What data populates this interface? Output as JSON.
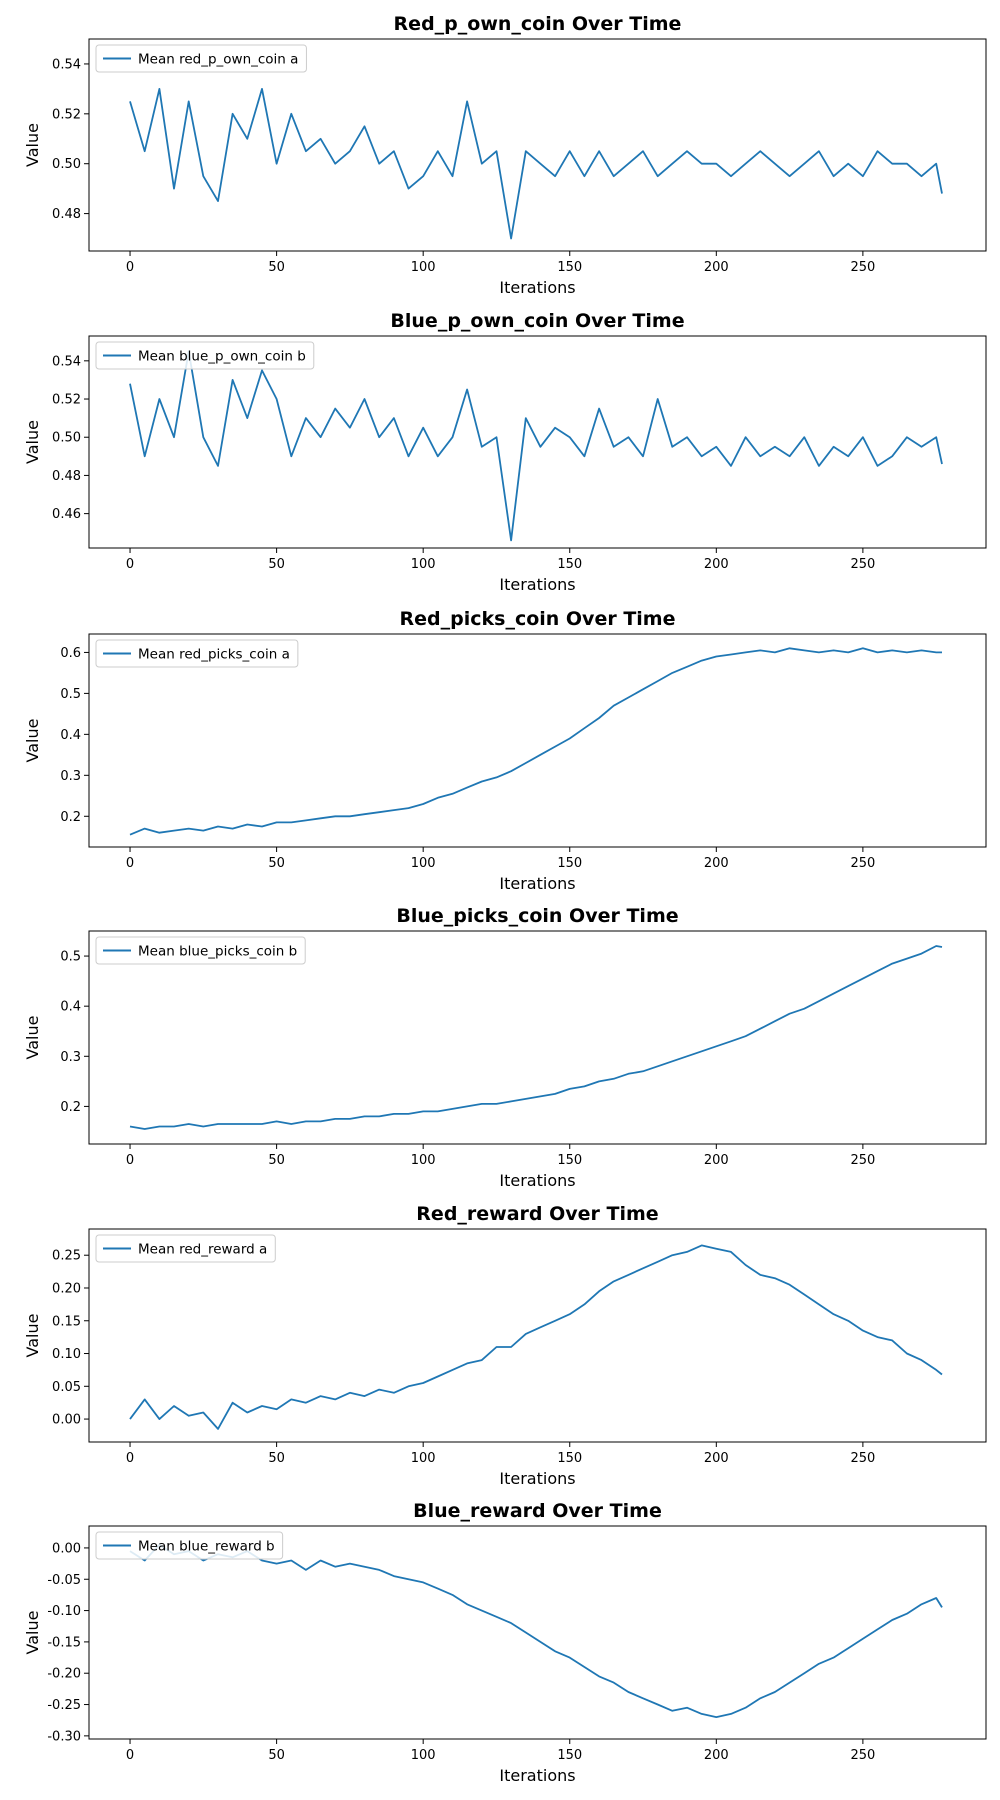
{
  "chart_data": [
    {
      "type": "line",
      "title": "Red_p_own_coin Over Time",
      "xlabel": "Iterations",
      "ylabel": "Value",
      "xlim": [
        -14,
        292
      ],
      "ylim": [
        0.465,
        0.55
      ],
      "xticks": [
        0,
        50,
        100,
        150,
        200,
        250
      ],
      "yticks": [
        0.48,
        0.5,
        0.52,
        0.54
      ],
      "ytick_decimals": 2,
      "legend": "upper-left",
      "series": [
        {
          "name": "Mean red_p_own_coin a",
          "color": "#1f77b4",
          "x": [
            0,
            5,
            10,
            15,
            20,
            25,
            30,
            35,
            40,
            45,
            50,
            55,
            60,
            65,
            70,
            75,
            80,
            85,
            90,
            95,
            100,
            105,
            110,
            115,
            120,
            125,
            130,
            135,
            140,
            145,
            150,
            155,
            160,
            165,
            170,
            175,
            180,
            185,
            190,
            195,
            200,
            205,
            210,
            215,
            220,
            225,
            230,
            235,
            240,
            245,
            250,
            255,
            260,
            265,
            270,
            275,
            277
          ],
          "y": [
            0.525,
            0.505,
            0.53,
            0.49,
            0.525,
            0.495,
            0.485,
            0.52,
            0.51,
            0.53,
            0.5,
            0.52,
            0.505,
            0.51,
            0.5,
            0.505,
            0.515,
            0.5,
            0.505,
            0.49,
            0.495,
            0.505,
            0.495,
            0.525,
            0.5,
            0.505,
            0.47,
            0.505,
            0.5,
            0.495,
            0.505,
            0.495,
            0.505,
            0.495,
            0.5,
            0.505,
            0.495,
            0.5,
            0.505,
            0.5,
            0.5,
            0.495,
            0.5,
            0.505,
            0.5,
            0.495,
            0.5,
            0.505,
            0.495,
            0.5,
            0.495,
            0.505,
            0.5,
            0.5,
            0.495,
            0.5,
            0.488
          ]
        }
      ]
    },
    {
      "type": "line",
      "title": "Blue_p_own_coin Over Time",
      "xlabel": "Iterations",
      "ylabel": "Value",
      "xlim": [
        -14,
        292
      ],
      "ylim": [
        0.442,
        0.553
      ],
      "xticks": [
        0,
        50,
        100,
        150,
        200,
        250
      ],
      "yticks": [
        0.46,
        0.48,
        0.5,
        0.52,
        0.54
      ],
      "ytick_decimals": 2,
      "legend": "upper-left",
      "series": [
        {
          "name": "Mean blue_p_own_coin b",
          "color": "#1f77b4",
          "x": [
            0,
            5,
            10,
            15,
            20,
            25,
            30,
            35,
            40,
            45,
            50,
            55,
            60,
            65,
            70,
            75,
            80,
            85,
            90,
            95,
            100,
            105,
            110,
            115,
            120,
            125,
            130,
            135,
            140,
            145,
            150,
            155,
            160,
            165,
            170,
            175,
            180,
            185,
            190,
            195,
            200,
            205,
            210,
            215,
            220,
            225,
            230,
            235,
            240,
            245,
            250,
            255,
            260,
            265,
            270,
            275,
            277
          ],
          "y": [
            0.528,
            0.49,
            0.52,
            0.5,
            0.545,
            0.5,
            0.485,
            0.53,
            0.51,
            0.535,
            0.52,
            0.49,
            0.51,
            0.5,
            0.515,
            0.505,
            0.52,
            0.5,
            0.51,
            0.49,
            0.505,
            0.49,
            0.5,
            0.525,
            0.495,
            0.5,
            0.446,
            0.51,
            0.495,
            0.505,
            0.5,
            0.49,
            0.515,
            0.495,
            0.5,
            0.49,
            0.52,
            0.495,
            0.5,
            0.49,
            0.495,
            0.485,
            0.5,
            0.49,
            0.495,
            0.49,
            0.5,
            0.485,
            0.495,
            0.49,
            0.5,
            0.485,
            0.49,
            0.5,
            0.495,
            0.5,
            0.486
          ]
        }
      ]
    },
    {
      "type": "line",
      "title": "Red_picks_coin Over Time",
      "xlabel": "Iterations",
      "ylabel": "Value",
      "xlim": [
        -14,
        292
      ],
      "ylim": [
        0.125,
        0.645
      ],
      "xticks": [
        0,
        50,
        100,
        150,
        200,
        250
      ],
      "yticks": [
        0.2,
        0.3,
        0.4,
        0.5,
        0.6
      ],
      "ytick_decimals": 1,
      "legend": "upper-left",
      "series": [
        {
          "name": "Mean red_picks_coin a",
          "color": "#1f77b4",
          "x": [
            0,
            5,
            10,
            15,
            20,
            25,
            30,
            35,
            40,
            45,
            50,
            55,
            60,
            65,
            70,
            75,
            80,
            85,
            90,
            95,
            100,
            105,
            110,
            115,
            120,
            125,
            130,
            135,
            140,
            145,
            150,
            155,
            160,
            165,
            170,
            175,
            180,
            185,
            190,
            195,
            200,
            205,
            210,
            215,
            220,
            225,
            230,
            235,
            240,
            245,
            250,
            255,
            260,
            265,
            270,
            275,
            277
          ],
          "y": [
            0.155,
            0.17,
            0.16,
            0.165,
            0.17,
            0.165,
            0.175,
            0.17,
            0.18,
            0.175,
            0.185,
            0.185,
            0.19,
            0.195,
            0.2,
            0.2,
            0.205,
            0.21,
            0.215,
            0.22,
            0.23,
            0.245,
            0.255,
            0.27,
            0.285,
            0.295,
            0.31,
            0.33,
            0.35,
            0.37,
            0.39,
            0.415,
            0.44,
            0.47,
            0.49,
            0.51,
            0.53,
            0.55,
            0.565,
            0.58,
            0.59,
            0.595,
            0.6,
            0.605,
            0.6,
            0.61,
            0.605,
            0.6,
            0.605,
            0.6,
            0.61,
            0.6,
            0.605,
            0.6,
            0.605,
            0.6,
            0.6
          ]
        }
      ]
    },
    {
      "type": "line",
      "title": "Blue_picks_coin Over Time",
      "xlabel": "Iterations",
      "ylabel": "Value",
      "xlim": [
        -14,
        292
      ],
      "ylim": [
        0.125,
        0.55
      ],
      "xticks": [
        0,
        50,
        100,
        150,
        200,
        250
      ],
      "yticks": [
        0.2,
        0.3,
        0.4,
        0.5
      ],
      "ytick_decimals": 1,
      "legend": "upper-left",
      "series": [
        {
          "name": "Mean blue_picks_coin b",
          "color": "#1f77b4",
          "x": [
            0,
            5,
            10,
            15,
            20,
            25,
            30,
            35,
            40,
            45,
            50,
            55,
            60,
            65,
            70,
            75,
            80,
            85,
            90,
            95,
            100,
            105,
            110,
            115,
            120,
            125,
            130,
            135,
            140,
            145,
            150,
            155,
            160,
            165,
            170,
            175,
            180,
            185,
            190,
            195,
            200,
            205,
            210,
            215,
            220,
            225,
            230,
            235,
            240,
            245,
            250,
            255,
            260,
            265,
            270,
            275,
            277
          ],
          "y": [
            0.16,
            0.155,
            0.16,
            0.16,
            0.165,
            0.16,
            0.165,
            0.165,
            0.165,
            0.165,
            0.17,
            0.165,
            0.17,
            0.17,
            0.175,
            0.175,
            0.18,
            0.18,
            0.185,
            0.185,
            0.19,
            0.19,
            0.195,
            0.2,
            0.205,
            0.205,
            0.21,
            0.215,
            0.22,
            0.225,
            0.235,
            0.24,
            0.25,
            0.255,
            0.265,
            0.27,
            0.28,
            0.29,
            0.3,
            0.31,
            0.32,
            0.33,
            0.34,
            0.355,
            0.37,
            0.385,
            0.395,
            0.41,
            0.425,
            0.44,
            0.455,
            0.47,
            0.485,
            0.495,
            0.505,
            0.52,
            0.518
          ]
        }
      ]
    },
    {
      "type": "line",
      "title": "Red_reward Over Time",
      "xlabel": "Iterations",
      "ylabel": "Value",
      "xlim": [
        -14,
        292
      ],
      "ylim": [
        -0.035,
        0.29
      ],
      "xticks": [
        0,
        50,
        100,
        150,
        200,
        250
      ],
      "yticks": [
        0.0,
        0.05,
        0.1,
        0.15,
        0.2,
        0.25
      ],
      "ytick_decimals": 2,
      "legend": "upper-left",
      "series": [
        {
          "name": "Mean red_reward a",
          "color": "#1f77b4",
          "x": [
            0,
            5,
            10,
            15,
            20,
            25,
            30,
            35,
            40,
            45,
            50,
            55,
            60,
            65,
            70,
            75,
            80,
            85,
            90,
            95,
            100,
            105,
            110,
            115,
            120,
            125,
            130,
            135,
            140,
            145,
            150,
            155,
            160,
            165,
            170,
            175,
            180,
            185,
            190,
            195,
            200,
            205,
            210,
            215,
            220,
            225,
            230,
            235,
            240,
            245,
            250,
            255,
            260,
            265,
            270,
            275,
            277
          ],
          "y": [
            0.0,
            0.03,
            0.0,
            0.02,
            0.005,
            0.01,
            -0.015,
            0.025,
            0.01,
            0.02,
            0.015,
            0.03,
            0.025,
            0.035,
            0.03,
            0.04,
            0.035,
            0.045,
            0.04,
            0.05,
            0.055,
            0.065,
            0.075,
            0.085,
            0.09,
            0.11,
            0.11,
            0.13,
            0.14,
            0.15,
            0.16,
            0.175,
            0.195,
            0.21,
            0.22,
            0.23,
            0.24,
            0.25,
            0.255,
            0.265,
            0.26,
            0.255,
            0.235,
            0.22,
            0.215,
            0.205,
            0.19,
            0.175,
            0.16,
            0.15,
            0.135,
            0.125,
            0.12,
            0.1,
            0.09,
            0.075,
            0.068
          ]
        }
      ]
    },
    {
      "type": "line",
      "title": "Blue_reward Over Time",
      "xlabel": "Iterations",
      "ylabel": "Value",
      "xlim": [
        -14,
        292
      ],
      "ylim": [
        -0.305,
        0.035
      ],
      "xticks": [
        0,
        50,
        100,
        150,
        200,
        250
      ],
      "yticks": [
        0.0,
        -0.05,
        -0.1,
        -0.15,
        -0.2,
        -0.25,
        -0.3
      ],
      "ytick_decimals": 2,
      "legend": "upper-left",
      "series": [
        {
          "name": "Mean blue_reward b",
          "color": "#1f77b4",
          "x": [
            0,
            5,
            10,
            15,
            20,
            25,
            30,
            35,
            40,
            45,
            50,
            55,
            60,
            65,
            70,
            75,
            80,
            85,
            90,
            95,
            100,
            105,
            110,
            115,
            120,
            125,
            130,
            135,
            140,
            145,
            150,
            155,
            160,
            165,
            170,
            175,
            180,
            185,
            190,
            195,
            200,
            205,
            210,
            215,
            220,
            225,
            230,
            235,
            240,
            245,
            250,
            255,
            260,
            265,
            270,
            275,
            277
          ],
          "y": [
            -0.005,
            -0.02,
            0.005,
            -0.01,
            -0.005,
            -0.02,
            -0.01,
            -0.015,
            -0.005,
            -0.02,
            -0.025,
            -0.02,
            -0.035,
            -0.02,
            -0.03,
            -0.025,
            -0.03,
            -0.035,
            -0.045,
            -0.05,
            -0.055,
            -0.065,
            -0.075,
            -0.09,
            -0.1,
            -0.11,
            -0.12,
            -0.135,
            -0.15,
            -0.165,
            -0.175,
            -0.19,
            -0.205,
            -0.215,
            -0.23,
            -0.24,
            -0.25,
            -0.26,
            -0.255,
            -0.265,
            -0.27,
            -0.265,
            -0.255,
            -0.24,
            -0.23,
            -0.215,
            -0.2,
            -0.185,
            -0.175,
            -0.16,
            -0.145,
            -0.13,
            -0.115,
            -0.105,
            -0.09,
            -0.08,
            -0.095
          ]
        }
      ]
    }
  ]
}
